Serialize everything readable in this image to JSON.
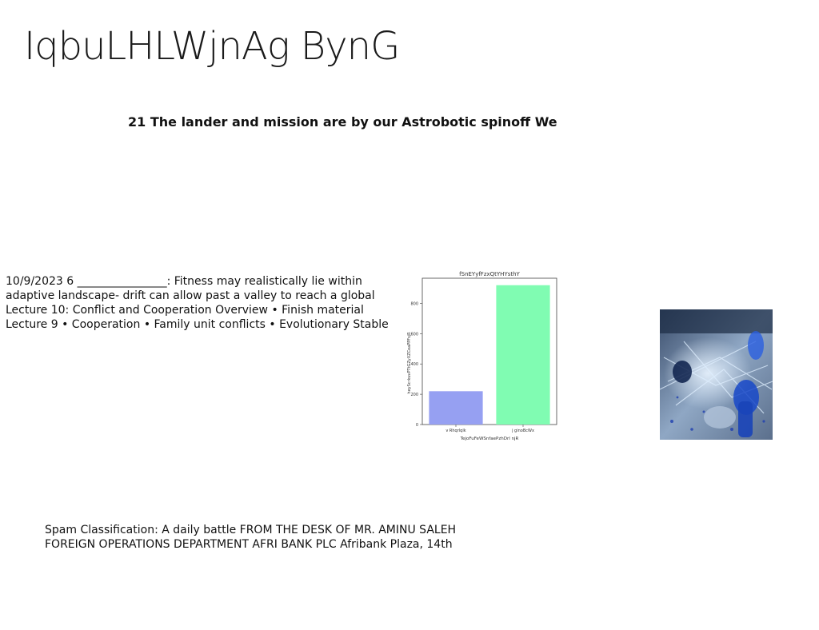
{
  "page": {
    "title": "IqbuLHLWjnAg BynG",
    "subtitle": "21 The lander and mission are by our Astrobotic spinoff We"
  },
  "lecture_block": {
    "lines": [
      "10/9/2023 6 ________________: Fitness may realistically lie within",
      "adaptive landscape- drift can allow past a valley to reach a global",
      "Lecture 10: Conflict and Cooperation Overview • Finish material",
      "Lecture 9 • Cooperation • Family unit conflicts • Evolutionary Stable"
    ]
  },
  "spam_block": {
    "lines": [
      "Spam Classification: A daily battle FROM THE DESK OF MR. AMINU SALEH",
      "FOREIGN OPERATIONS DEPARTMENT AFRI BANK PLC Afribank Plaza, 14th"
    ]
  },
  "chart_data": {
    "type": "bar",
    "title": "fSnEYyfFzxQtYHYsthY",
    "xlabel": "TejoFuFeWSnfaePzhDrl njR",
    "ylabel": "heyScrkuvPTtGZyXZCeaPPFsjR",
    "categories": [
      "v Rhqrlqlk",
      "j ginoBcWx"
    ],
    "values": [
      220,
      920
    ],
    "colors": [
      "#96a0f2",
      "#80fcb2"
    ],
    "yticks": [
      0,
      200,
      400,
      600,
      800
    ],
    "ylim": [
      0,
      966
    ],
    "grid": false
  },
  "photo": {
    "icon": "glassware-photo"
  }
}
